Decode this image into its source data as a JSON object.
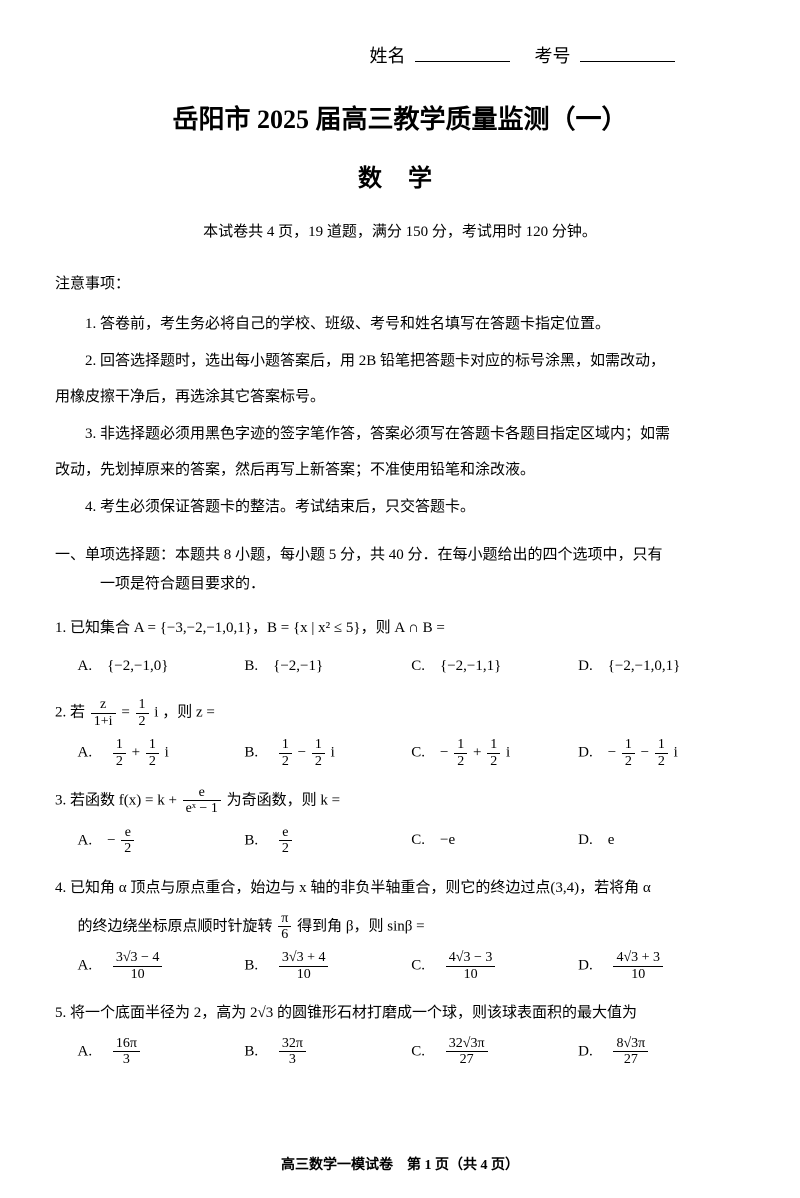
{
  "header": {
    "name_label": "姓名",
    "examno_label": "考号"
  },
  "title": "岳阳市 2025 届高三教学质量监测（一）",
  "subtitle": "数 学",
  "exam_info": "本试卷共 4 页，19 道题，满分 150 分，考试用时 120 分钟。",
  "notice_head": "注意事项：",
  "notices": [
    "1. 答卷前，考生务必将自己的学校、班级、考号和姓名填写在答题卡指定位置。",
    "2. 回答选择题时，选出每小题答案后，用 2B 铅笔把答题卡对应的标号涂黑，如需改动，",
    "用橡皮擦干净后，再选涂其它答案标号。",
    "3. 非选择题必须用黑色字迹的签字笔作答，答案必须写在答题卡各题目指定区域内；如需",
    "改动，先划掉原来的答案，然后再写上新答案；不准使用铅笔和涂改液。",
    "4. 考生必须保证答题卡的整洁。考试结束后，只交答题卡。"
  ],
  "section1_line1": "一、单项选择题：本题共 8 小题，每小题 5 分，共 40 分．在每小题给出的四个选项中，只有",
  "section1_line2": "一项是符合题目要求的．",
  "q1": {
    "text": "1. 已知集合 A = {−3,−2,−1,0,1}，B = {x | x² ≤ 5}，则 A ∩ B =",
    "A": "A.　{−2,−1,0}",
    "B": "B.　{−2,−1}",
    "C": "C.　{−2,−1,1}",
    "D": "D.　{−2,−1,0,1}"
  },
  "q2": {
    "prefix": "2. 若 ",
    "eq_top": "z",
    "eq_bot": "1+i",
    "eq_mid": " = ",
    "eq_r_top": "1",
    "eq_r_bot": "2",
    "suffix": " i ，则 z =",
    "A_pre": "A.　",
    "B_pre": "B.　",
    "C_pre": "C.　− ",
    "D_pre": "D.　− ",
    "plus": " + ",
    "minus": " − ",
    "minus_neg": " + ",
    "i": " i",
    "half_top": "1",
    "half_bot": "2"
  },
  "q3": {
    "prefix": "3. 若函数 f(x) = k + ",
    "f_top": "e",
    "f_bot": "eˣ − 1",
    "suffix": " 为奇函数，则 k =",
    "A_pre": "A.　− ",
    "B_pre": "B.　",
    "C": "C.　−e",
    "D": "D.　e",
    "e2_top": "e",
    "e2_bot": "2"
  },
  "q4": {
    "line1": "4. 已知角 α 顶点与原点重合，始边与 x 轴的非负半轴重合，则它的终边过点(3,4)，若将角 α",
    "line2_pre": "的终边绕坐标原点顺时针旋转 ",
    "pi6_top": "π",
    "pi6_bot": "6",
    "line2_suf": " 得到角 β，则 sinβ =",
    "A_pre": "A.　",
    "B_pre": "B.　",
    "C_pre": "C.　",
    "D_pre": "D.　",
    "A_top": "3√3 − 4",
    "B_top": "3√3 + 4",
    "C_top": "4√3 − 3",
    "D_top": "4√3 + 3",
    "den10": "10"
  },
  "q5": {
    "text": "5. 将一个底面半径为 2，高为 2√3 的圆锥形石材打磨成一个球，则该球表面积的最大值为",
    "A_pre": "A.　",
    "B_pre": "B.　",
    "C_pre": "C.　",
    "D_pre": "D.　",
    "A_top": "16π",
    "A_bot": "3",
    "B_top": "32π",
    "B_bot": "3",
    "C_top": "32√3π",
    "C_bot": "27",
    "D_top": "8√3π",
    "D_bot": "27"
  },
  "footer": "高三数学一模试卷　第 1 页（共 4 页）"
}
